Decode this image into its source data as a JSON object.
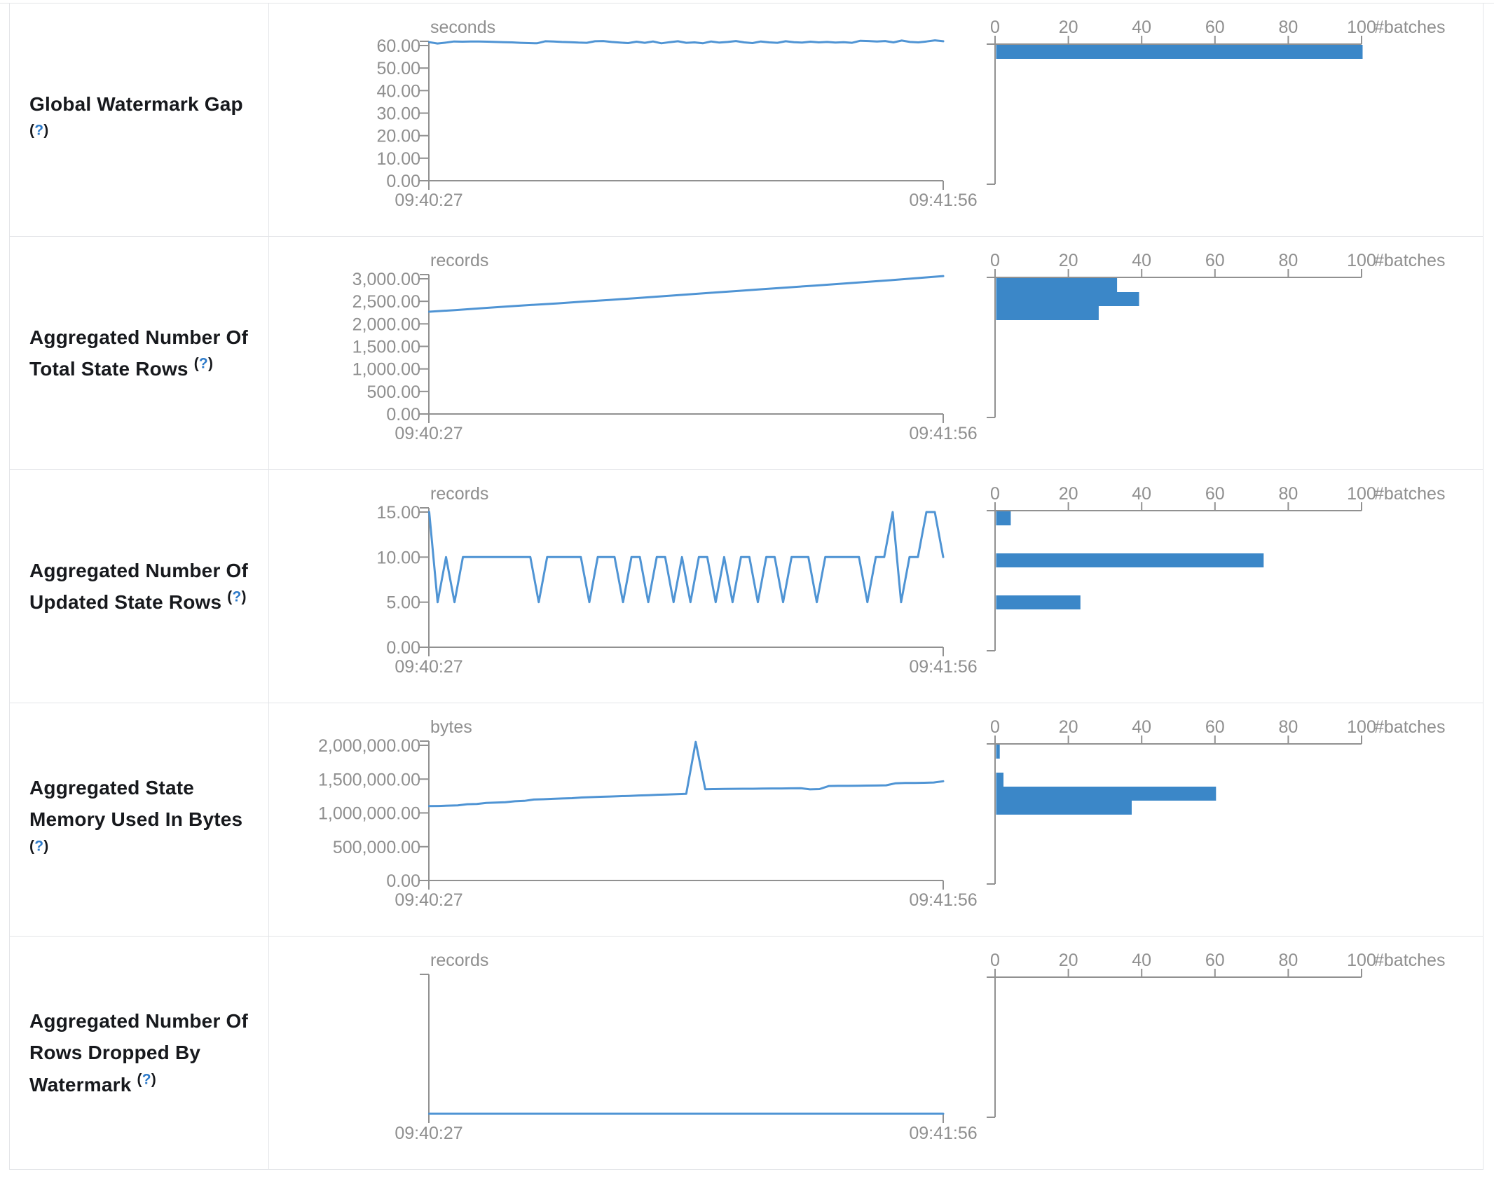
{
  "colors": {
    "bar_blue": "#3b87c8",
    "line_blue": "#4f94d4",
    "axis_gray": "#919191",
    "axis_text_gray": "#8f8f8f",
    "label_dark": "#17191d",
    "help_blue": "#2d7ac9",
    "border_gray": "#e3e5e8"
  },
  "help": {
    "open_paren": "(",
    "question_mark": "?",
    "close_paren": ")"
  },
  "axis": {
    "time_start": "09:40:27",
    "time_end": "09:41:56",
    "batches_title": "#batches",
    "batch_ticks": [
      "0",
      "20",
      "40",
      "60",
      "80",
      "100"
    ],
    "batch_axis_max": 100
  },
  "chart_data": {
    "type": "line+histogram-grid",
    "rows": [
      {
        "label": "Global Watermark Gap",
        "unit": "seconds",
        "y_tick_labels": [
          "60.00",
          "50.00",
          "40.00",
          "30.00",
          "20.00",
          "10.00",
          "0.00"
        ],
        "y_top_value": 60,
        "timeline_values": [
          61.5,
          60.9,
          61.3,
          61.8,
          61.7,
          61.8,
          61.8,
          61.7,
          61.6,
          61.5,
          61.4,
          61.2,
          61.1,
          61.0,
          61.9,
          61.8,
          61.6,
          61.5,
          61.3,
          61.2,
          61.9,
          62.0,
          61.6,
          61.3,
          61.1,
          61.7,
          61.2,
          61.8,
          61.0,
          61.5,
          61.9,
          61.2,
          61.4,
          61.0,
          61.8,
          61.3,
          61.6,
          62.0,
          61.4,
          61.1,
          61.8,
          61.4,
          61.2,
          61.9,
          61.5,
          61.3,
          61.7,
          61.4,
          61.6,
          61.3,
          61.5,
          61.2,
          62.1,
          62.0,
          61.8,
          62.0,
          61.4,
          62.2,
          61.6,
          61.4,
          61.8,
          62.3,
          61.9
        ],
        "histogram_bins": [
          100,
          0,
          0,
          0,
          0,
          0,
          0,
          0,
          0,
          0
        ]
      },
      {
        "label": "Aggregated Number Of Total State Rows",
        "unit": "records",
        "y_tick_labels": [
          "3,000.00",
          "2,500.00",
          "2,000.00",
          "1,500.00",
          "1,000.00",
          "500.00",
          "0.00"
        ],
        "y_top_value": 3000,
        "timeline_values": [
          2270,
          2305,
          2345,
          2385,
          2420,
          2455,
          2495,
          2530,
          2570,
          2610,
          2650,
          2690,
          2730,
          2770,
          2810,
          2850,
          2890,
          2930,
          2970,
          3015,
          3060
        ],
        "histogram_bins": [
          33,
          39,
          28,
          0,
          0,
          0,
          0,
          0,
          0,
          0
        ]
      },
      {
        "label": "Aggregated Number Of Updated State Rows",
        "unit": "records",
        "y_tick_labels": [
          "15.00",
          "10.00",
          "5.00",
          "0.00"
        ],
        "y_top_value": 15,
        "timeline_values": [
          15,
          5,
          10,
          5,
          10,
          10,
          10,
          10,
          10,
          10,
          10,
          10,
          10,
          5,
          10,
          10,
          10,
          10,
          10,
          5,
          10,
          10,
          10,
          5,
          10,
          10,
          5,
          10,
          10,
          5,
          10,
          5,
          10,
          10,
          5,
          10,
          5,
          10,
          10,
          5,
          10,
          10,
          5,
          10,
          10,
          10,
          5,
          10,
          10,
          10,
          10,
          10,
          5,
          10,
          10,
          15,
          5,
          10,
          10,
          15,
          15,
          10
        ],
        "histogram_bins": [
          4,
          0,
          0,
          73,
          0,
          0,
          23,
          0,
          0,
          0
        ]
      },
      {
        "label": "Aggregated State Memory Used In Bytes",
        "unit": "bytes",
        "y_tick_labels": [
          "2,000,000.00",
          "1,500,000.00",
          "1,000,000.00",
          "500,000.00",
          "0.00"
        ],
        "y_top_value": 2000000,
        "timeline_values": [
          1100000,
          1103000,
          1108000,
          1112000,
          1128000,
          1132000,
          1148000,
          1152000,
          1158000,
          1172000,
          1178000,
          1198000,
          1202000,
          1208000,
          1213000,
          1218000,
          1228000,
          1233000,
          1238000,
          1243000,
          1248000,
          1252000,
          1258000,
          1262000,
          1268000,
          1272000,
          1278000,
          1283000,
          2050000,
          1350000,
          1352000,
          1354000,
          1356000,
          1358000,
          1358000,
          1360000,
          1362000,
          1362000,
          1364000,
          1366000,
          1348000,
          1352000,
          1398000,
          1400000,
          1400000,
          1402000,
          1404000,
          1405000,
          1408000,
          1438000,
          1442000,
          1444000,
          1446000,
          1450000,
          1468000
        ],
        "histogram_bins": [
          1,
          0,
          2,
          60,
          37,
          0,
          0,
          0,
          0,
          0
        ]
      },
      {
        "label": "Aggregated Number Of Rows Dropped By Watermark",
        "unit": "records",
        "y_tick_labels": [],
        "y_top_value": 1,
        "timeline_values": [
          0,
          0,
          0,
          0,
          0,
          0,
          0,
          0,
          0,
          0
        ],
        "histogram_bins": [
          0,
          0,
          0,
          0,
          0,
          0,
          0,
          0,
          0,
          0
        ]
      }
    ]
  }
}
